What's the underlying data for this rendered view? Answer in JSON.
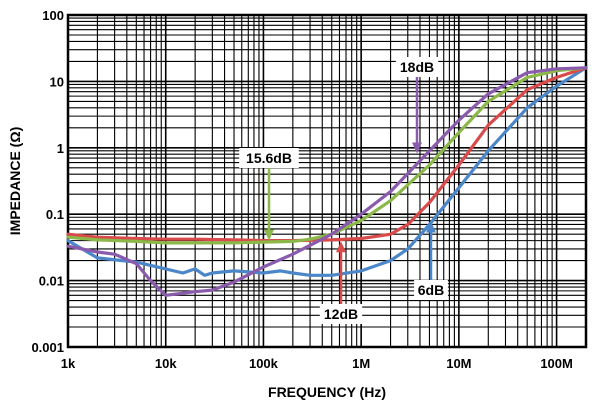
{
  "chart_data": {
    "type": "line",
    "title": "",
    "xlabel": "FREQUENCY (Hz)",
    "ylabel": "IMPEDANCE (Ω)",
    "x_scale": "log",
    "y_scale": "log",
    "xlim": [
      1000,
      200000000
    ],
    "ylim": [
      0.001,
      100
    ],
    "grid": true,
    "x_ticks": [
      {
        "value": 1000,
        "label": "1k"
      },
      {
        "value": 10000,
        "label": "10k"
      },
      {
        "value": 100000,
        "label": "100k"
      },
      {
        "value": 1000000,
        "label": "1M"
      },
      {
        "value": 10000000,
        "label": "10M"
      },
      {
        "value": 100000000,
        "label": "100M"
      }
    ],
    "y_ticks": [
      {
        "value": 0.001,
        "label": "0.001"
      },
      {
        "value": 0.01,
        "label": "0.01"
      },
      {
        "value": 0.1,
        "label": "0.1"
      },
      {
        "value": 1,
        "label": "1"
      },
      {
        "value": 10,
        "label": "10"
      },
      {
        "value": 100,
        "label": "100"
      }
    ],
    "series": [
      {
        "name": "6dB",
        "color": "#4a86c8",
        "x": [
          1000,
          2000,
          5000,
          10000,
          15000,
          20000,
          25000,
          30000,
          50000,
          100000,
          150000,
          200000,
          300000,
          500000,
          1000000,
          2000000,
          3000000,
          5000000,
          10000000,
          20000000,
          50000000,
          100000000,
          200000000
        ],
        "y": [
          0.04,
          0.022,
          0.019,
          0.015,
          0.013,
          0.015,
          0.012,
          0.013,
          0.014,
          0.013,
          0.014,
          0.013,
          0.012,
          0.012,
          0.014,
          0.02,
          0.03,
          0.07,
          0.25,
          0.9,
          4.0,
          8.5,
          16
        ]
      },
      {
        "name": "12dB",
        "color": "#d94a4a",
        "x": [
          1000,
          2000,
          5000,
          10000,
          20000,
          50000,
          100000,
          200000,
          500000,
          1000000,
          2000000,
          3000000,
          5000000,
          10000000,
          20000000,
          50000000,
          100000000,
          200000000
        ],
        "y": [
          0.05,
          0.045,
          0.043,
          0.042,
          0.042,
          0.041,
          0.04,
          0.04,
          0.041,
          0.043,
          0.05,
          0.07,
          0.15,
          0.55,
          2.2,
          7.5,
          11.5,
          16
        ]
      },
      {
        "name": "15.6dB",
        "color": "#8cb84a",
        "x": [
          1000,
          2000,
          5000,
          10000,
          20000,
          50000,
          100000,
          200000,
          300000,
          500000,
          1000000,
          2000000,
          5000000,
          10000000,
          20000000,
          50000000,
          100000000,
          200000000
        ],
        "y": [
          0.045,
          0.041,
          0.039,
          0.037,
          0.037,
          0.037,
          0.038,
          0.039,
          0.042,
          0.05,
          0.08,
          0.16,
          0.55,
          1.7,
          5.0,
          11.5,
          14.5,
          16
        ]
      },
      {
        "name": "18dB",
        "color": "#8a5aad",
        "x": [
          1000,
          2000,
          3000,
          5000,
          7000,
          10000,
          20000,
          30000,
          50000,
          100000,
          200000,
          500000,
          1000000,
          2000000,
          5000000,
          10000000,
          20000000,
          50000000,
          100000000,
          200000000
        ],
        "y": [
          0.033,
          0.027,
          0.025,
          0.018,
          0.01,
          0.006,
          0.0068,
          0.0072,
          0.0095,
          0.016,
          0.025,
          0.05,
          0.1,
          0.22,
          0.9,
          2.6,
          6.5,
          13.5,
          15.5,
          16
        ]
      }
    ],
    "annotations": [
      {
        "label": "18dB",
        "series": "18dB"
      },
      {
        "label": "15.6dB",
        "series": "15.6dB"
      },
      {
        "label": "12dB",
        "series": "12dB"
      },
      {
        "label": "6dB",
        "series": "6dB"
      }
    ]
  }
}
